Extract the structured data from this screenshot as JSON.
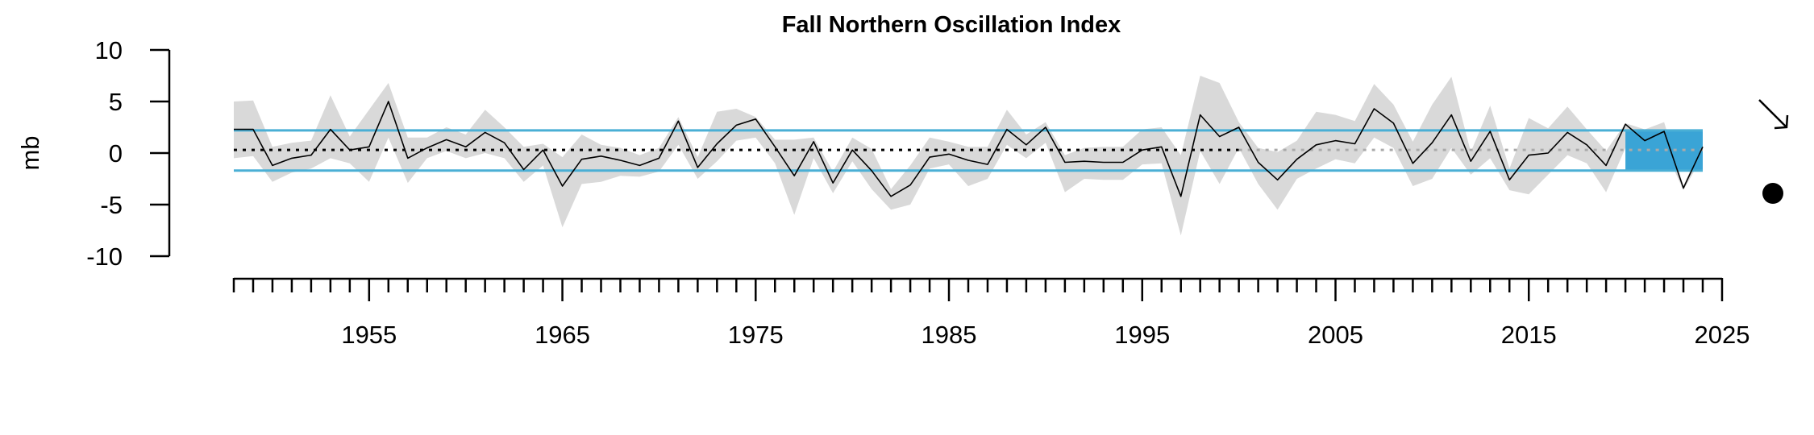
{
  "chart_data": {
    "type": "line",
    "title": "Fall Northern Oscillation Index",
    "ylabel": "mb",
    "xlabel": "",
    "ylim": [
      -10,
      10
    ],
    "yticks": [
      10,
      5,
      0,
      -5,
      -10
    ],
    "xlim": [
      1948,
      2025
    ],
    "x_tick_labels": [
      1955,
      1965,
      1975,
      1985,
      1995,
      2005,
      2015,
      2025
    ],
    "x_minor_tick_step": 1,
    "mean": 0.3,
    "upper_sd": 2.2,
    "lower_sd": -1.7,
    "highlight_period": [
      2020,
      2024
    ],
    "trend_symbol": "arrow-down-right",
    "mean_symbol": "filled-circle",
    "colors": {
      "sd_band": "#4aafd5",
      "highlight_fill": "#3aa4d6",
      "uncertainty": "#d9d9d9",
      "series": "#000000",
      "mean_line": "#000000",
      "recent_mean_line": "#aaaaaa"
    },
    "series": [
      {
        "x": [
          1948,
          1949,
          1950,
          1951,
          1952,
          1953,
          1954,
          1955,
          1956,
          1957,
          1958,
          1959,
          1960,
          1961,
          1962,
          1963,
          1964,
          1965,
          1966,
          1967,
          1968,
          1969,
          1970,
          1971,
          1972,
          1973,
          1974,
          1975,
          1976,
          1977,
          1978,
          1979,
          1980,
          1981,
          1982,
          1983,
          1984,
          1985,
          1986,
          1987,
          1988,
          1989,
          1990,
          1991,
          1992,
          1993,
          1994,
          1995,
          1996,
          1997,
          1998,
          1999,
          2000,
          2001,
          2002,
          2003,
          2004,
          2005,
          2006,
          2007,
          2008,
          2009,
          2010,
          2011,
          2012,
          2013,
          2014,
          2015,
          2016,
          2017,
          2018,
          2019,
          2020,
          2021,
          2022,
          2023,
          2024
        ],
        "values": [
          2.3,
          2.3,
          -1.2,
          -0.5,
          -0.2,
          2.3,
          0.3,
          0.6,
          5.0,
          -0.5,
          0.5,
          1.3,
          0.6,
          2.0,
          1.0,
          -1.6,
          0.3,
          -3.2,
          -0.6,
          -0.3,
          -0.7,
          -1.2,
          -0.5,
          3.1,
          -1.4,
          0.9,
          2.7,
          3.3,
          0.6,
          -2.2,
          1.1,
          -2.9,
          0.3,
          -1.7,
          -4.2,
          -3.1,
          -0.4,
          -0.1,
          -0.7,
          -1.1,
          2.3,
          0.8,
          2.5,
          -0.9,
          -0.8,
          -0.9,
          -0.9,
          0.3,
          0.6,
          -4.2,
          3.7,
          1.6,
          2.5,
          -0.9,
          -2.6,
          -0.6,
          0.8,
          1.2,
          0.9,
          4.3,
          2.9,
          -1.0,
          1.0,
          3.7,
          -0.8,
          2.1,
          -2.6,
          -0.2,
          0.0,
          2.0,
          0.8,
          -1.2,
          2.8,
          1.2,
          2.1,
          -3.4,
          0.6
        ],
        "lower": [
          -0.5,
          -0.3,
          -2.8,
          -1.9,
          -1.5,
          -0.5,
          -1.0,
          -2.8,
          1.5,
          -2.9,
          -0.5,
          0.2,
          -0.5,
          0.0,
          -0.5,
          -2.8,
          -1.2,
          -7.2,
          -3.0,
          -2.8,
          -2.2,
          -2.3,
          -1.8,
          0.8,
          -2.5,
          -0.8,
          1.2,
          1.5,
          -1.0,
          -6.0,
          -0.5,
          -3.9,
          -0.8,
          -3.5,
          -5.5,
          -5.0,
          -1.5,
          -1.1,
          -3.2,
          -2.5,
          0.8,
          -0.5,
          1.0,
          -3.8,
          -2.5,
          -2.6,
          -2.6,
          -1.1,
          -1.0,
          -8.0,
          0.2,
          -3.0,
          0.5,
          -3.0,
          -5.5,
          -2.5,
          -1.5,
          -0.6,
          -1.0,
          1.5,
          0.5,
          -3.2,
          -2.5,
          0.5,
          -2.1,
          -0.5,
          -3.6,
          -4.0,
          -2.1,
          -0.2,
          -1.0,
          -3.8,
          0.5,
          -0.3,
          0.5,
          -3.6,
          -0.3
        ],
        "upper": [
          5.0,
          5.1,
          0.6,
          1.0,
          1.2,
          5.6,
          1.6,
          4.2,
          6.8,
          1.5,
          1.5,
          2.5,
          1.8,
          4.2,
          2.5,
          0.6,
          0.9,
          -0.4,
          1.8,
          0.8,
          0.5,
          -0.2,
          0.5,
          3.5,
          -0.4,
          4.0,
          4.3,
          3.5,
          1.3,
          1.3,
          1.5,
          -1.8,
          1.5,
          0.4,
          -3.5,
          -1.2,
          1.5,
          1.1,
          0.6,
          0.6,
          4.2,
          1.8,
          3.0,
          -0.2,
          0.5,
          0.6,
          0.6,
          2.3,
          2.5,
          -0.2,
          7.5,
          6.8,
          3.0,
          0.5,
          0.1,
          1.2,
          4.0,
          3.7,
          3.1,
          6.7,
          4.7,
          1.1,
          4.7,
          7.4,
          0.1,
          4.6,
          -1.5,
          3.4,
          2.4,
          4.5,
          2.3,
          0.2,
          2.9,
          2.3,
          3.0,
          -3.2,
          1.0
        ]
      }
    ]
  }
}
